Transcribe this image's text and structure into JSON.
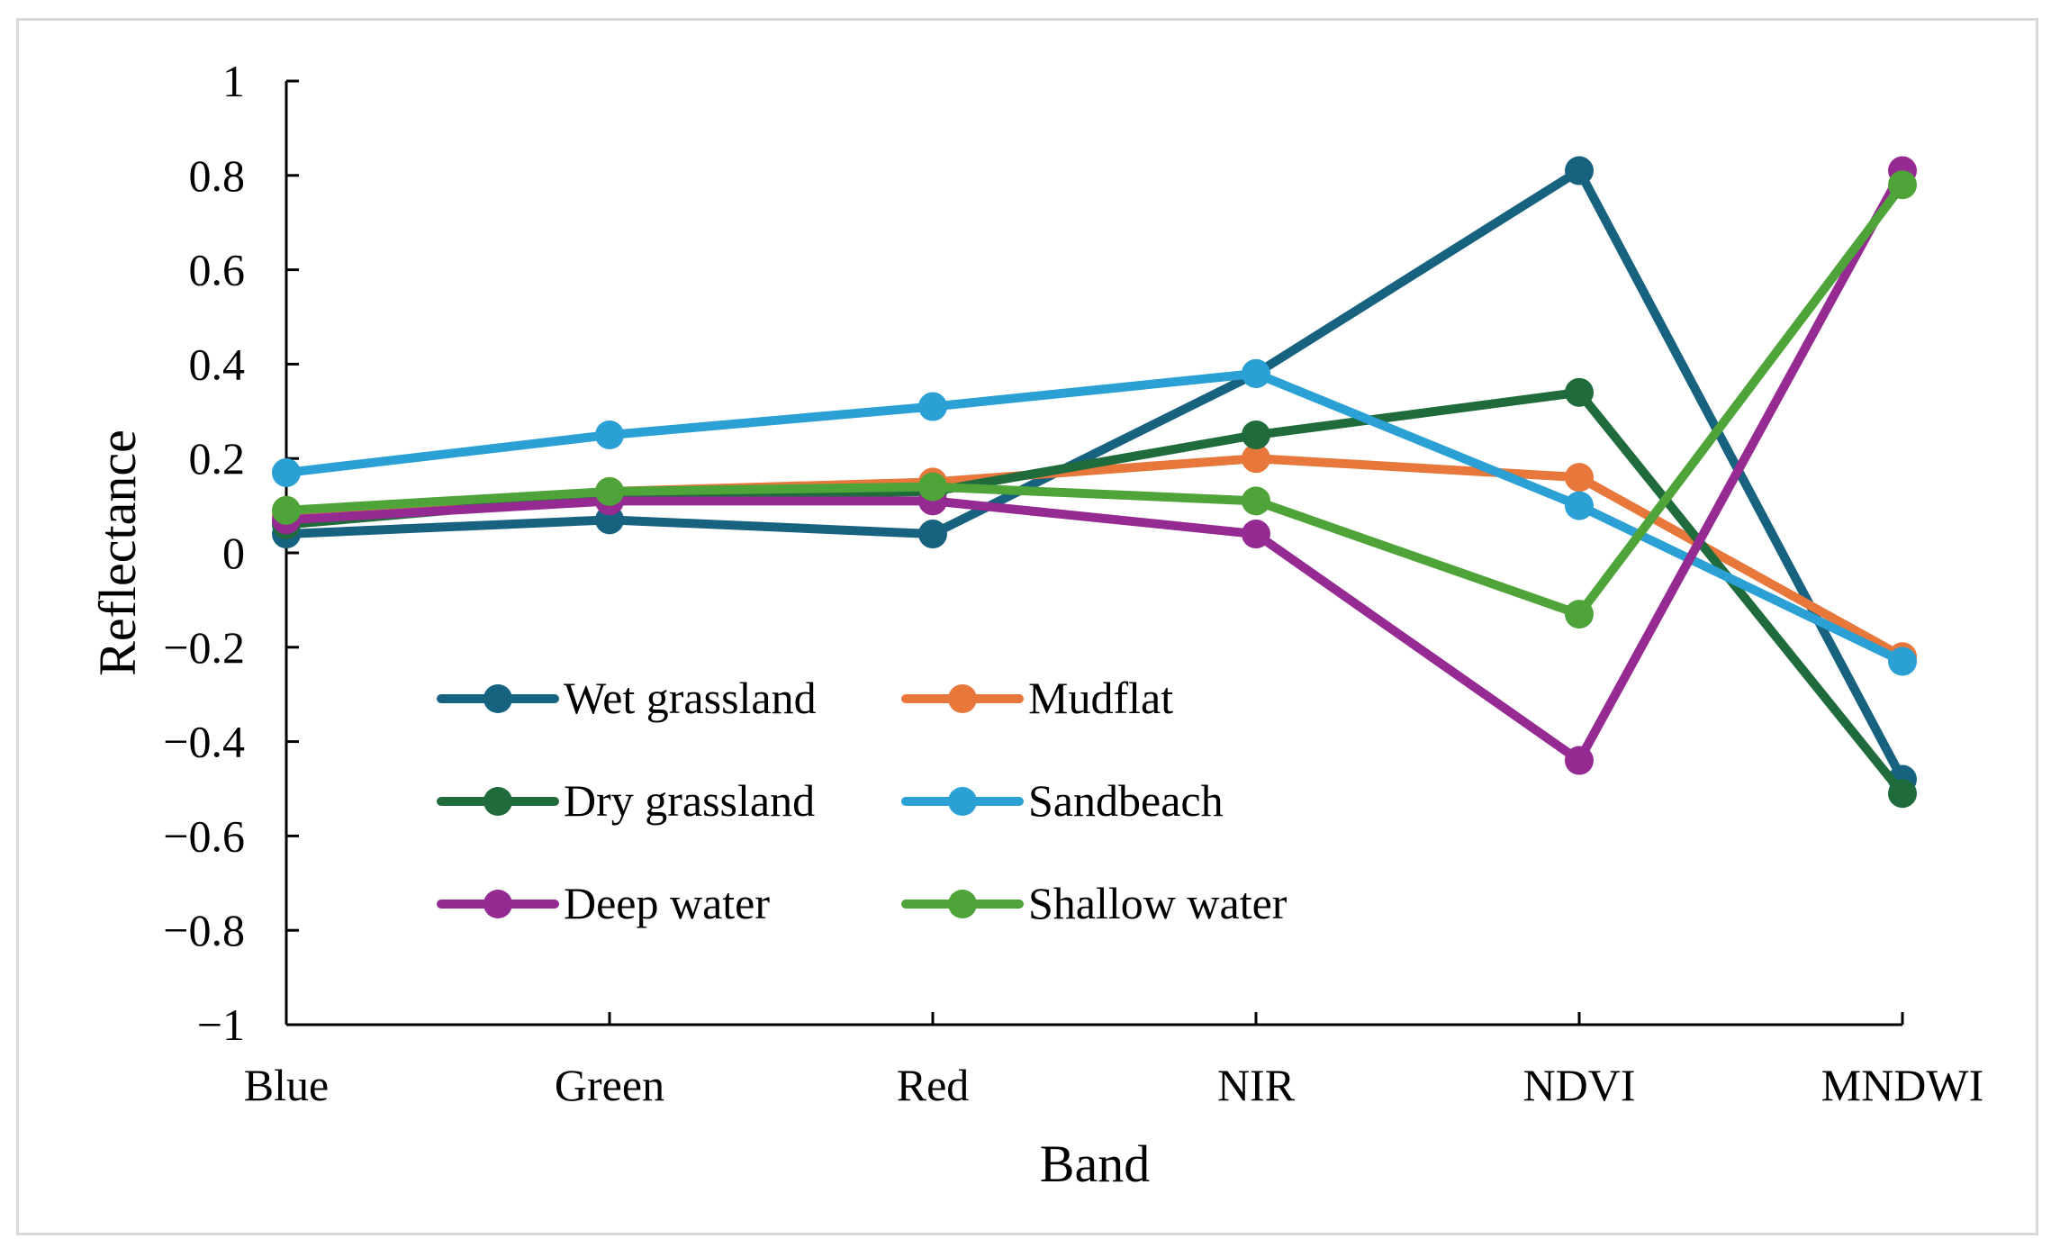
{
  "chart_data": {
    "type": "line",
    "title": "",
    "xlabel": "Band",
    "ylabel": "Reflectance",
    "categories": [
      "Blue",
      "Green",
      "Red",
      "NIR",
      "NDVI",
      "MNDWI"
    ],
    "ylim": [
      -1,
      1
    ],
    "yticks": [
      1,
      0.8,
      0.6,
      0.4,
      0.2,
      0,
      -0.2,
      -0.4,
      -0.6,
      -0.8,
      -1
    ],
    "ytick_labels": [
      "1",
      "0.8",
      "0.6",
      "0.4",
      "0.2",
      "0",
      "−0.2",
      "−0.4",
      "−0.6",
      "−0.8",
      "−1"
    ],
    "grid": false,
    "legend_position": "lower-left inside",
    "series": [
      {
        "name": "Wet grassland",
        "color": "#16627f",
        "values": [
          0.04,
          0.07,
          0.04,
          0.38,
          0.81,
          -0.48
        ]
      },
      {
        "name": "Mudflat",
        "color": "#e8773b",
        "values": [
          0.08,
          0.13,
          0.15,
          0.2,
          0.16,
          -0.22
        ]
      },
      {
        "name": "Dry grassland",
        "color": "#1f6b3b",
        "values": [
          0.06,
          0.12,
          0.13,
          0.25,
          0.34,
          -0.51
        ]
      },
      {
        "name": "Sandbeach",
        "color": "#2aa0d4",
        "values": [
          0.17,
          0.25,
          0.31,
          0.38,
          0.1,
          -0.23
        ]
      },
      {
        "name": "Deep water",
        "color": "#952b92",
        "values": [
          0.07,
          0.11,
          0.11,
          0.04,
          -0.44,
          0.81
        ]
      },
      {
        "name": "Shallow water",
        "color": "#4ea339",
        "values": [
          0.09,
          0.13,
          0.14,
          0.11,
          -0.13,
          0.78
        ]
      }
    ]
  }
}
